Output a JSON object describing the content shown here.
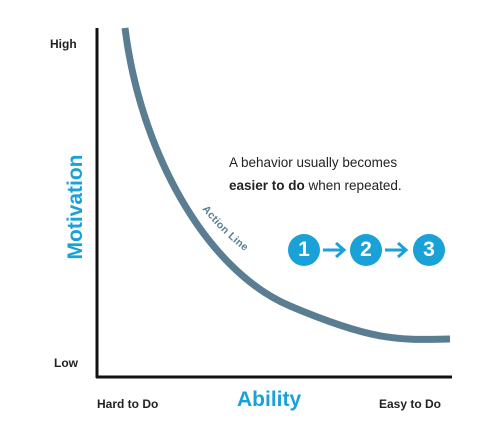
{
  "y_axis": {
    "label": "Motivation",
    "high": "High",
    "low": "Low"
  },
  "x_axis": {
    "label": "Ability",
    "left": "Hard to Do",
    "right": "Easy to Do"
  },
  "curve": {
    "label": "Action Line",
    "color": "#5a7d91"
  },
  "note": {
    "pre": "A behavior usually becomes",
    "bold": "easier to do",
    "post": " when repeated."
  },
  "steps": [
    "1",
    "2",
    "3"
  ],
  "accent_color": "#1aa2d8"
}
